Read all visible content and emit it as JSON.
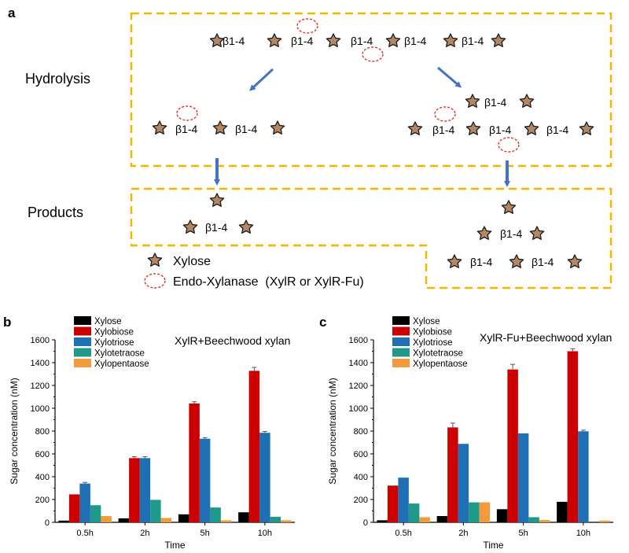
{
  "panel_labels": {
    "a": "a",
    "b": "b",
    "c": "c"
  },
  "diagram": {
    "bond_label": "β1-4",
    "row_hydrolysis": "Hydrolysis",
    "row_products": "Products",
    "legend_xylose": "Xylose",
    "legend_enzyme": "Endo-Xylanase  (XylR or XylR-Fu)",
    "colors": {
      "star_fill": "#b58662",
      "box": "#f5b400",
      "arrow": "#4472c4",
      "enzyme": "#e8302a"
    }
  },
  "chart_data": [
    {
      "id": "b",
      "type": "bar",
      "title": "XylR+Beechwood xylan",
      "xlabel": "Time",
      "ylabel": "Sugar concentration (nM)",
      "ylim": [
        0,
        1600
      ],
      "yticks": [
        0,
        200,
        400,
        600,
        800,
        1000,
        1200,
        1400,
        1600
      ],
      "categories": [
        "0.5h",
        "2h",
        "5h",
        "10h"
      ],
      "series": [
        {
          "name": "Xylose",
          "color": "#000000",
          "values": [
            15,
            35,
            70,
            88
          ],
          "errors": [
            0,
            0,
            0,
            0
          ]
        },
        {
          "name": "Xylobiose",
          "color": "#cc0000",
          "values": [
            245,
            563,
            1042,
            1328
          ],
          "errors": [
            0,
            12,
            15,
            30
          ]
        },
        {
          "name": "Xylotriose",
          "color": "#1f6fb5",
          "values": [
            340,
            563,
            733,
            785
          ],
          "errors": [
            10,
            12,
            10,
            12
          ]
        },
        {
          "name": "Xylotetraose",
          "color": "#1f9a8a",
          "values": [
            150,
            197,
            130,
            48
          ],
          "errors": [
            0,
            0,
            0,
            0
          ]
        },
        {
          "name": "Xylopentaose",
          "color": "#f39a3c",
          "values": [
            55,
            38,
            18,
            18
          ],
          "errors": [
            0,
            0,
            0,
            0
          ]
        }
      ]
    },
    {
      "id": "c",
      "type": "bar",
      "title": "XylR-Fu+Beechwood xylan",
      "xlabel": "Time",
      "ylabel": "Sugar concentration (nM)",
      "ylim": [
        0,
        1600
      ],
      "yticks": [
        0,
        200,
        400,
        600,
        800,
        1000,
        1200,
        1400,
        1600
      ],
      "categories": [
        "0.5h",
        "2h",
        "5h",
        "10h"
      ],
      "series": [
        {
          "name": "Xylose",
          "color": "#000000",
          "values": [
            18,
            55,
            115,
            180
          ],
          "errors": [
            0,
            0,
            0,
            0
          ]
        },
        {
          "name": "Xylobiose",
          "color": "#cc0000",
          "values": [
            322,
            832,
            1340,
            1500
          ],
          "errors": [
            0,
            38,
            45,
            22
          ]
        },
        {
          "name": "Xylotriose",
          "color": "#1f6fb5",
          "values": [
            392,
            688,
            780,
            798
          ],
          "errors": [
            0,
            0,
            0,
            10
          ]
        },
        {
          "name": "Xylotetraose",
          "color": "#1f9a8a",
          "values": [
            165,
            175,
            45,
            0
          ],
          "errors": [
            0,
            0,
            0,
            0
          ]
        },
        {
          "name": "Xylopentaose",
          "color": "#f39a3c",
          "values": [
            45,
            175,
            20,
            15
          ],
          "errors": [
            0,
            0,
            0,
            0
          ]
        }
      ]
    }
  ]
}
